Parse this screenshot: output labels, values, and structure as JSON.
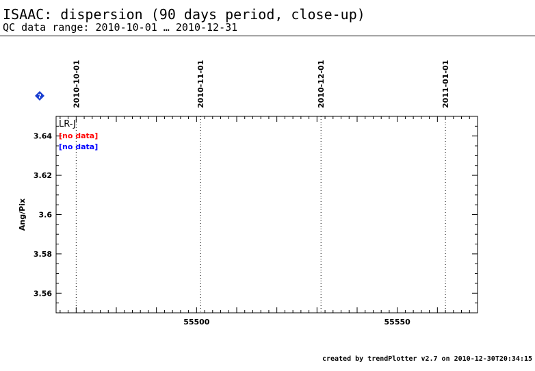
{
  "header": {
    "title": "ISAAC: dispersion (90 days period, close-up)",
    "subtitle": "QC data range: 2010-10-01 … 2010-12-31"
  },
  "footer": {
    "text": "created by trendPlotter v2.7 on 2010-12-30T20:34:15"
  },
  "help_icon": {
    "name": "help-icon",
    "color": "#1a3fd0"
  },
  "chart_data": {
    "type": "scatter",
    "ylabel": "Ang/Pix",
    "xlabel": "",
    "xlim": [
      55465,
      55570
    ],
    "ylim": [
      3.55,
      3.65
    ],
    "yticks": [
      3.56,
      3.58,
      3.6,
      3.62,
      3.64
    ],
    "ytick_labels": [
      "3.56",
      "3.58",
      "3.6",
      "3.62",
      "3.64"
    ],
    "xticks": [
      55500,
      55550
    ],
    "xtick_labels": [
      "55500",
      "55550"
    ],
    "date_markers": [
      {
        "x": 55470,
        "label": "2010-10-01"
      },
      {
        "x": 55501,
        "label": "2010-11-01"
      },
      {
        "x": 55531,
        "label": "2010-12-01"
      },
      {
        "x": 55562,
        "label": "2011-01-01"
      }
    ],
    "legend": {
      "placement": "top-left",
      "heading": "LR-J",
      "entries": [
        {
          "text": "[no data]",
          "color": "#ff0000"
        },
        {
          "text": "[no data]",
          "color": "#0000ff"
        }
      ]
    },
    "series": []
  }
}
